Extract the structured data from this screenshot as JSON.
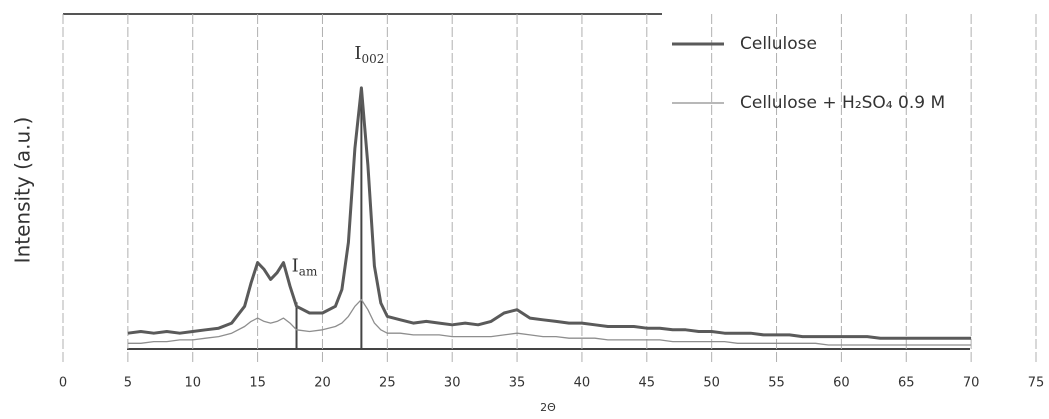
{
  "chart_data": {
    "type": "line",
    "x_label": "2Θ",
    "y_label": "Intensity (a.u.)",
    "xlim": [
      0,
      75
    ],
    "xticks": [
      0,
      5,
      10,
      15,
      20,
      25,
      30,
      35,
      40,
      45,
      50,
      55,
      60,
      65,
      70,
      75
    ],
    "ylim": [
      0,
      100
    ],
    "grid": true,
    "legend": "upper right",
    "annotations": [
      {
        "text": "I",
        "sub": "002",
        "x": 23
      },
      {
        "text": "I",
        "sub": "am",
        "x": 18
      }
    ],
    "x": [
      5,
      6,
      7,
      8,
      9,
      10,
      11,
      12,
      13,
      14,
      14.5,
      15,
      15.5,
      16,
      16.5,
      17,
      17.5,
      18,
      19,
      20,
      21,
      21.5,
      22,
      22.5,
      23,
      23.5,
      24,
      24.5,
      25,
      26,
      27,
      28,
      29,
      30,
      31,
      32,
      33,
      34,
      35,
      36,
      37,
      38,
      39,
      40,
      41,
      42,
      43,
      44,
      45,
      46,
      47,
      48,
      49,
      50,
      51,
      52,
      53,
      54,
      55,
      56,
      57,
      58,
      59,
      60,
      61,
      62,
      63,
      64,
      65,
      66,
      67,
      68,
      69,
      70
    ],
    "series": [
      {
        "name": "Cellulose",
        "color": "#5a5a5a",
        "values": [
          5,
          5.5,
          5,
          5.5,
          5,
          5.5,
          6,
          6.5,
          8,
          13,
          20,
          26,
          24,
          21,
          23,
          26,
          19,
          13,
          11,
          11,
          13,
          18,
          32,
          60,
          78,
          55,
          25,
          14,
          10,
          9,
          8,
          8.5,
          8,
          7.5,
          8,
          7.5,
          8.5,
          11,
          12,
          9.5,
          9,
          8.5,
          8,
          8,
          7.5,
          7,
          7,
          7,
          6.5,
          6.5,
          6,
          6,
          5.5,
          5.5,
          5,
          5,
          5,
          4.5,
          4.5,
          4.5,
          4,
          4,
          4,
          4,
          4,
          4,
          3.5,
          3.5,
          3.5,
          3.5,
          3.5,
          3.5,
          3.5,
          3.5
        ]
      },
      {
        "name": "Cellulose + H₂SO₄ 0.9 M",
        "color": "#8e8e8e",
        "values": [
          2,
          2,
          2.5,
          2.5,
          3,
          3,
          3.5,
          4,
          5,
          7,
          8.5,
          9.5,
          8.5,
          8,
          8.5,
          9.5,
          8,
          6,
          5.5,
          6,
          7,
          8,
          10,
          13,
          15,
          12,
          8,
          6,
          5,
          5,
          4.5,
          4.5,
          4.5,
          4,
          4,
          4,
          4,
          4.5,
          5,
          4.5,
          4,
          4,
          3.5,
          3.5,
          3.5,
          3,
          3,
          3,
          3,
          3,
          2.5,
          2.5,
          2.5,
          2.5,
          2.5,
          2,
          2,
          2,
          2,
          2,
          2,
          2,
          1.5,
          1.5,
          1.5,
          1.5,
          1.5,
          1.5,
          1.5,
          1.5,
          1.5,
          1.5,
          1.5,
          1.5
        ]
      }
    ]
  }
}
